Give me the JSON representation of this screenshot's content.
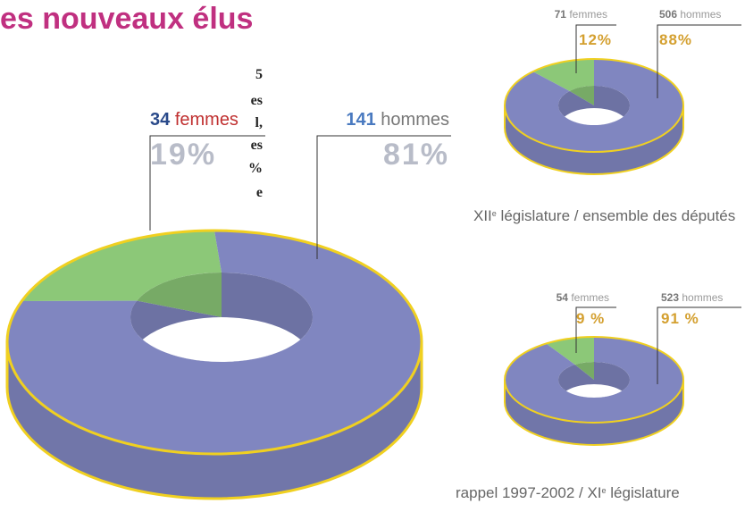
{
  "header": {
    "title": "es nouveaux élus",
    "text_fragments": [
      "5",
      "es",
      "l,",
      "es",
      "%",
      "e"
    ]
  },
  "chart_data": [
    {
      "type": "donut",
      "categories": [
        "femmes",
        "hommes"
      ],
      "counts": [
        34,
        141
      ],
      "values": [
        19,
        81
      ],
      "value_labels": [
        "19%",
        "81%"
      ],
      "colors": [
        "#8cc878",
        "#8086c0"
      ]
    },
    {
      "type": "donut",
      "categories": [
        "femmes",
        "hommes"
      ],
      "counts": [
        71,
        506
      ],
      "values": [
        12,
        88
      ],
      "value_labels": [
        "12%",
        "88%"
      ],
      "colors": [
        "#8cc878",
        "#8086c0"
      ],
      "caption": [
        "XII",
        "e",
        " législature / ensemble des députés"
      ]
    },
    {
      "type": "donut",
      "categories": [
        "femmes",
        "hommes"
      ],
      "counts": [
        54,
        523
      ],
      "values": [
        9,
        91
      ],
      "value_labels": [
        "9 %",
        "91 %"
      ],
      "colors": [
        "#8cc878",
        "#8086c0"
      ],
      "caption": [
        "rappel 1997-2002 / XI",
        "e",
        " législature"
      ]
    }
  ]
}
